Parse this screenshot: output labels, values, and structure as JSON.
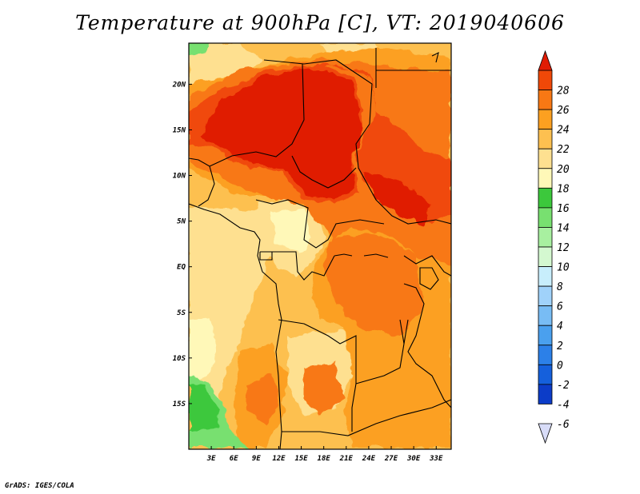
{
  "title": "Temperature at 900hPa [C], VT: 2019040606",
  "credit": "GrADS: IGES/COLA",
  "map": {
    "variable": "Temperature at 900hPa",
    "units": "C",
    "lon_range": [
      0,
      35
    ],
    "lat_range": [
      -20,
      24.5
    ],
    "x_ticks": [
      {
        "lon": 3,
        "label": "3E"
      },
      {
        "lon": 6,
        "label": "6E"
      },
      {
        "lon": 9,
        "label": "9E"
      },
      {
        "lon": 12,
        "label": "12E"
      },
      {
        "lon": 15,
        "label": "15E"
      },
      {
        "lon": 18,
        "label": "18E"
      },
      {
        "lon": 21,
        "label": "21E"
      },
      {
        "lon": 24,
        "label": "24E"
      },
      {
        "lon": 27,
        "label": "27E"
      },
      {
        "lon": 30,
        "label": "30E"
      },
      {
        "lon": 33,
        "label": "33E"
      }
    ],
    "y_ticks": [
      {
        "lat": 20,
        "label": "20N"
      },
      {
        "lat": 15,
        "label": "15N"
      },
      {
        "lat": 10,
        "label": "10N"
      },
      {
        "lat": 5,
        "label": "5N"
      },
      {
        "lat": 0,
        "label": "EQ"
      },
      {
        "lat": -5,
        "label": "5S"
      },
      {
        "lat": -10,
        "label": "10S"
      },
      {
        "lat": -15,
        "label": "15S"
      }
    ]
  },
  "colorbar": {
    "levels": [
      "-6",
      "-4",
      "-2",
      "0",
      "2",
      "4",
      "6",
      "8",
      "10",
      "12",
      "14",
      "16",
      "18",
      "20",
      "22",
      "24",
      "26",
      "28"
    ],
    "colors": [
      "#0a0a78",
      "#0c3cc8",
      "#1560dc",
      "#2c80e8",
      "#4aa0ee",
      "#78bcf4",
      "#a0d2fa",
      "#c8eefc",
      "#d4f8d0",
      "#a8f0a0",
      "#78e070",
      "#3cc83c",
      "#fff8b8",
      "#fee090",
      "#fdc050",
      "#fca020",
      "#f87814",
      "#f04808",
      "#e01c04"
    ],
    "under_color": "#d8dcf8",
    "over_color": "#e01c04"
  }
}
